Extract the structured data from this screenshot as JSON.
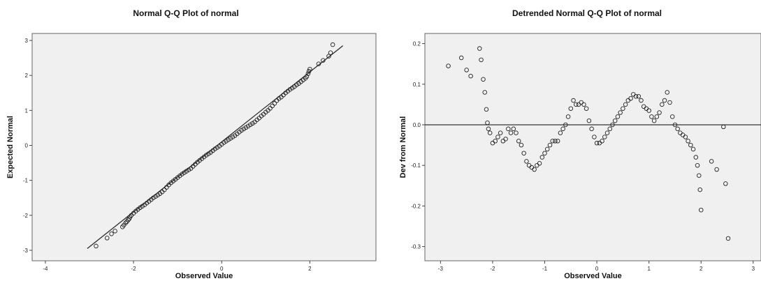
{
  "chart_data": [
    {
      "type": "scatter",
      "title": "Normal Q-Q Plot of normal",
      "xlabel": "Observed Value",
      "ylabel": "Expected Normal",
      "xlim": [
        -4.3,
        3.5
      ],
      "ylim": [
        -3.3,
        3.2
      ],
      "x_ticks": [
        -4,
        -2,
        0,
        2
      ],
      "y_ticks": [
        -3,
        -2,
        -1,
        0,
        1,
        2,
        3
      ],
      "x_tick_labels": [
        "-4",
        "-2",
        "0",
        "2"
      ],
      "y_tick_labels": [
        "-3",
        "-2",
        "-1",
        "0",
        "1",
        "2",
        "3"
      ],
      "reference_line": {
        "x": [
          -3.05,
          2.75
        ],
        "y": [
          -2.95,
          2.85
        ]
      },
      "points": {
        "x": [
          -2.85,
          -2.6,
          -2.5,
          -2.42,
          -2.25,
          -2.22,
          -2.18,
          -2.15,
          -2.12,
          -2.1,
          -2.08,
          -2.05,
          -2.0,
          -1.95,
          -1.9,
          -1.85,
          -1.8,
          -1.75,
          -1.7,
          -1.65,
          -1.6,
          -1.55,
          -1.5,
          -1.45,
          -1.4,
          -1.35,
          -1.3,
          -1.25,
          -1.2,
          -1.15,
          -1.1,
          -1.05,
          -1.0,
          -0.95,
          -0.9,
          -0.85,
          -0.8,
          -0.75,
          -0.7,
          -0.65,
          -0.6,
          -0.55,
          -0.5,
          -0.45,
          -0.4,
          -0.35,
          -0.3,
          -0.25,
          -0.2,
          -0.15,
          -0.1,
          -0.05,
          0.0,
          0.05,
          0.1,
          0.15,
          0.2,
          0.25,
          0.3,
          0.35,
          0.4,
          0.45,
          0.5,
          0.55,
          0.6,
          0.65,
          0.7,
          0.75,
          0.8,
          0.85,
          0.9,
          0.95,
          1.0,
          1.05,
          1.1,
          1.15,
          1.2,
          1.25,
          1.3,
          1.35,
          1.4,
          1.45,
          1.5,
          1.55,
          1.6,
          1.65,
          1.7,
          1.75,
          1.8,
          1.85,
          1.9,
          1.93,
          1.96,
          1.98,
          2.0,
          2.2,
          2.3,
          2.43,
          2.47,
          2.52
        ],
        "y": [
          -2.88,
          -2.65,
          -2.53,
          -2.45,
          -2.33,
          -2.28,
          -2.22,
          -2.18,
          -2.13,
          -2.1,
          -2.05,
          -2.0,
          -1.94,
          -1.88,
          -1.83,
          -1.78,
          -1.74,
          -1.7,
          -1.65,
          -1.6,
          -1.55,
          -1.5,
          -1.46,
          -1.42,
          -1.38,
          -1.33,
          -1.27,
          -1.2,
          -1.13,
          -1.07,
          -1.02,
          -0.97,
          -0.92,
          -0.87,
          -0.82,
          -0.78,
          -0.74,
          -0.7,
          -0.66,
          -0.6,
          -0.54,
          -0.48,
          -0.43,
          -0.38,
          -0.33,
          -0.28,
          -0.24,
          -0.2,
          -0.15,
          -0.1,
          -0.06,
          -0.02,
          0.03,
          0.08,
          0.12,
          0.16,
          0.2,
          0.24,
          0.28,
          0.33,
          0.38,
          0.43,
          0.47,
          0.51,
          0.55,
          0.59,
          0.63,
          0.67,
          0.73,
          0.78,
          0.84,
          0.89,
          0.95,
          1.0,
          1.06,
          1.13,
          1.2,
          1.28,
          1.34,
          1.38,
          1.44,
          1.5,
          1.55,
          1.6,
          1.64,
          1.68,
          1.73,
          1.77,
          1.82,
          1.87,
          1.92,
          1.97,
          2.05,
          2.12,
          2.18,
          2.33,
          2.43,
          2.55,
          2.65,
          2.88
        ]
      }
    },
    {
      "type": "scatter",
      "title": "Detrended Normal Q-Q Plot of normal",
      "xlabel": "Observed Value",
      "ylabel": "Dev from Normal",
      "xlim": [
        -3.3,
        3.15
      ],
      "ylim": [
        -0.335,
        0.225
      ],
      "x_ticks": [
        -3,
        -2,
        -1,
        0,
        1,
        2,
        3
      ],
      "y_ticks": [
        -0.3,
        -0.2,
        -0.1,
        0.0,
        0.1,
        0.2
      ],
      "x_tick_labels": [
        "-3",
        "-2",
        "-1",
        "0",
        "1",
        "2",
        "3"
      ],
      "y_tick_labels": [
        "-0.3",
        "-0.2",
        "-0.1",
        "0.0",
        "0.1",
        "0.2"
      ],
      "reference_line": {
        "y": 0.0
      },
      "points": {
        "x": [
          -2.85,
          -2.6,
          -2.5,
          -2.42,
          -2.25,
          -2.22,
          -2.18,
          -2.15,
          -2.12,
          -2.1,
          -2.08,
          -2.05,
          -2.0,
          -1.95,
          -1.9,
          -1.85,
          -1.8,
          -1.75,
          -1.7,
          -1.65,
          -1.6,
          -1.55,
          -1.5,
          -1.45,
          -1.4,
          -1.35,
          -1.3,
          -1.25,
          -1.2,
          -1.15,
          -1.1,
          -1.05,
          -1.0,
          -0.95,
          -0.9,
          -0.85,
          -0.8,
          -0.75,
          -0.7,
          -0.65,
          -0.6,
          -0.55,
          -0.5,
          -0.45,
          -0.4,
          -0.35,
          -0.3,
          -0.25,
          -0.2,
          -0.15,
          -0.1,
          -0.05,
          0.0,
          0.05,
          0.1,
          0.15,
          0.2,
          0.25,
          0.3,
          0.35,
          0.4,
          0.45,
          0.5,
          0.55,
          0.6,
          0.65,
          0.7,
          0.75,
          0.8,
          0.85,
          0.9,
          0.95,
          1.0,
          1.05,
          1.1,
          1.15,
          1.2,
          1.25,
          1.3,
          1.35,
          1.4,
          1.45,
          1.5,
          1.55,
          1.6,
          1.65,
          1.7,
          1.75,
          1.8,
          1.85,
          1.9,
          1.93,
          1.96,
          1.98,
          2.0,
          2.2,
          2.3,
          2.43,
          2.47,
          2.52
        ],
        "y": [
          0.145,
          0.165,
          0.135,
          0.12,
          0.188,
          0.16,
          0.112,
          0.08,
          0.038,
          0.005,
          -0.01,
          -0.02,
          -0.045,
          -0.04,
          -0.03,
          -0.02,
          -0.04,
          -0.035,
          -0.01,
          -0.02,
          -0.01,
          -0.02,
          -0.04,
          -0.05,
          -0.07,
          -0.09,
          -0.1,
          -0.105,
          -0.11,
          -0.1,
          -0.095,
          -0.08,
          -0.07,
          -0.06,
          -0.05,
          -0.04,
          -0.04,
          -0.04,
          -0.02,
          -0.01,
          0.0,
          0.02,
          0.04,
          0.06,
          0.05,
          0.05,
          0.055,
          0.05,
          0.04,
          0.01,
          -0.01,
          -0.03,
          -0.045,
          -0.045,
          -0.04,
          -0.03,
          -0.02,
          -0.01,
          0.0,
          0.01,
          0.02,
          0.03,
          0.04,
          0.05,
          0.06,
          0.065,
          0.075,
          0.07,
          0.07,
          0.06,
          0.045,
          0.04,
          0.035,
          0.02,
          0.01,
          0.02,
          0.03,
          0.05,
          0.06,
          0.08,
          0.055,
          0.02,
          0.0,
          -0.01,
          -0.02,
          -0.025,
          -0.03,
          -0.04,
          -0.05,
          -0.06,
          -0.08,
          -0.1,
          -0.125,
          -0.16,
          -0.21,
          -0.09,
          -0.11,
          -0.005,
          -0.145,
          -0.28
        ]
      }
    }
  ]
}
